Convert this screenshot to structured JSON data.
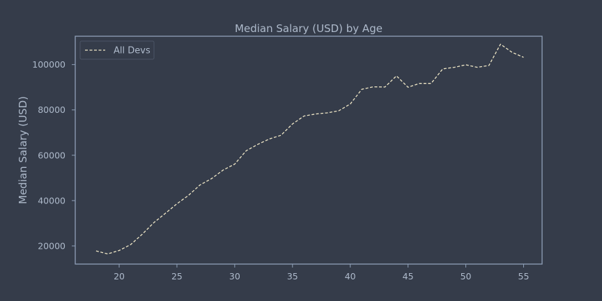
{
  "colors": {
    "background": "#353c4a",
    "axes_frame": "#8fa0b8",
    "text": "#aebacb",
    "line": "#efe7c7"
  },
  "chart_data": {
    "type": "line",
    "title": "Median Salary (USD) by Age",
    "xlabel": "",
    "ylabel": "Median Salary (USD)",
    "xlim": [
      16.2,
      56.6
    ],
    "ylim": [
      12000,
      112500
    ],
    "xticks": [
      20,
      25,
      30,
      35,
      40,
      45,
      50,
      55
    ],
    "yticks": [
      20000,
      40000,
      60000,
      80000,
      100000
    ],
    "grid": false,
    "legend_position": "top-left",
    "series": [
      {
        "name": "All Devs",
        "line_style": "dashed",
        "x": [
          18,
          19,
          20,
          21,
          22,
          23,
          24,
          25,
          26,
          27,
          28,
          29,
          30,
          31,
          32,
          33,
          34,
          35,
          36,
          37,
          38,
          39,
          40,
          41,
          42,
          43,
          44,
          45,
          46,
          47,
          48,
          49,
          50,
          51,
          52,
          53,
          54,
          55
        ],
        "y": [
          17800,
          16500,
          18000,
          20600,
          25200,
          30300,
          34400,
          38600,
          42300,
          46900,
          49700,
          53500,
          56100,
          62000,
          64800,
          67200,
          68800,
          73800,
          77300,
          78200,
          78700,
          79600,
          82600,
          89100,
          90200,
          90100,
          95000,
          90000,
          91700,
          91700,
          98100,
          98800,
          99900,
          98800,
          99600,
          109000,
          105400,
          103200
        ]
      }
    ]
  }
}
